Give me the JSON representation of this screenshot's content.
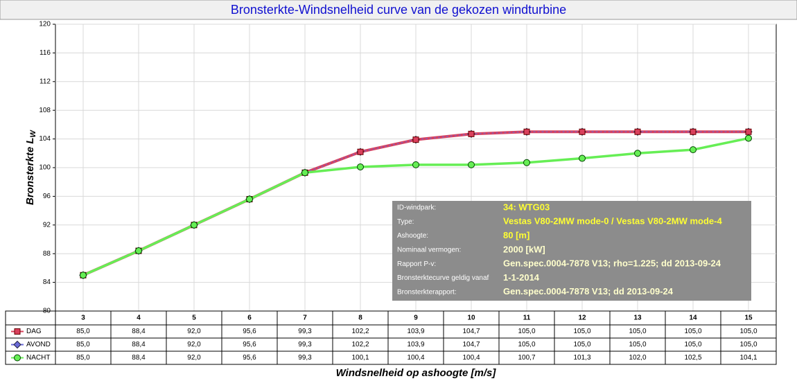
{
  "chart_data": {
    "type": "line",
    "title": "Bronsterkte-Windsnelheid curve van de gekozen windturbine",
    "y_label": "Bronsterkte L",
    "y_label_sub": "W",
    "x_label": "Windsnelheid op ashoogte [m/s]",
    "categories": [
      "3",
      "4",
      "5",
      "6",
      "7",
      "8",
      "9",
      "10",
      "11",
      "12",
      "13",
      "14",
      "15"
    ],
    "ylim": [
      80,
      120
    ],
    "yticks": [
      80,
      84,
      88,
      92,
      96,
      100,
      104,
      108,
      112,
      116,
      120
    ],
    "grid": true,
    "series": [
      {
        "name": "DAG",
        "color": "#d9405c",
        "marker": "square",
        "values": [
          85.0,
          88.4,
          92.0,
          95.6,
          99.3,
          102.2,
          103.9,
          104.7,
          105.0,
          105.0,
          105.0,
          105.0,
          105.0
        ],
        "value_labels": [
          "85,0",
          "88,4",
          "92,0",
          "95,6",
          "99,3",
          "102,2",
          "103,9",
          "104,7",
          "105,0",
          "105,0",
          "105,0",
          "105,0",
          "105,0"
        ]
      },
      {
        "name": "AVOND",
        "color": "#6a6ad8",
        "marker": "diamond",
        "values": [
          85.0,
          88.4,
          92.0,
          95.6,
          99.3,
          102.2,
          103.9,
          104.7,
          105.0,
          105.0,
          105.0,
          105.0,
          105.0
        ],
        "value_labels": [
          "85,0",
          "88,4",
          "92,0",
          "95,6",
          "99,3",
          "102,2",
          "103,9",
          "104,7",
          "105,0",
          "105,0",
          "105,0",
          "105,0",
          "105,0"
        ]
      },
      {
        "name": "NACHT",
        "color": "#66ee55",
        "marker": "circle",
        "values": [
          85.0,
          88.4,
          92.0,
          95.6,
          99.3,
          100.1,
          100.4,
          100.4,
          100.7,
          101.3,
          102.0,
          102.5,
          104.1
        ],
        "value_labels": [
          "85,0",
          "88,4",
          "92,0",
          "95,6",
          "99,3",
          "100,1",
          "100,4",
          "100,4",
          "100,7",
          "101,3",
          "102,0",
          "102,5",
          "104,1"
        ]
      }
    ],
    "info_box": [
      {
        "label": "ID-windpark:",
        "value": "34: WTG03"
      },
      {
        "label": "Type:",
        "value": "Vestas V80-2MW mode-0 / Vestas V80-2MW mode-4"
      },
      {
        "label": "Ashoogte:",
        "value": "80 [m]"
      },
      {
        "label": "Nominaal vermogen:",
        "value": "2000 [kW]"
      },
      {
        "label": "Rapport P-v:",
        "value": "Gen.spec.0004-7878 V13; rho=1.225; dd 2013-09-24"
      },
      {
        "label": "Bronsterktecurve geldig vanaf",
        "value": "1-1-2014"
      },
      {
        "label": "Bronsterkterapport:",
        "value": "Gen.spec.0004-7878 V13; dd 2013-09-24"
      }
    ]
  }
}
